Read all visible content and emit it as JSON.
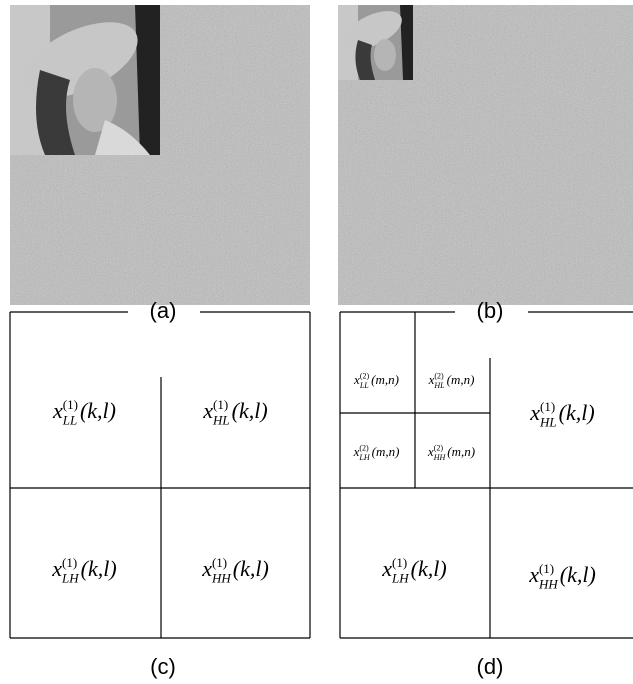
{
  "panels": [
    {
      "caption": "(a)"
    },
    {
      "caption": "(b)"
    },
    {
      "caption": "(c)",
      "cells": [
        {
          "var": "x",
          "sup": "(1)",
          "sub": "LL",
          "arg": "(k,l)"
        },
        {
          "var": "x",
          "sup": "(1)",
          "sub": "HL",
          "arg": "(k,l)"
        },
        {
          "var": "x",
          "sup": "(1)",
          "sub": "LH",
          "arg": "(k,l)"
        },
        {
          "var": "x",
          "sup": "(1)",
          "sub": "HH",
          "arg": "(k,l)"
        }
      ]
    },
    {
      "caption": "(d)",
      "cells": [
        {
          "var": "x",
          "sup": "(2)",
          "sub": "LL",
          "arg": "(m,n)"
        },
        {
          "var": "x",
          "sup": "(2)",
          "sub": "HL",
          "arg": "(m,n)"
        },
        {
          "var": "x",
          "sup": "(2)",
          "sub": "LH",
          "arg": "(m,n)"
        },
        {
          "var": "x",
          "sup": "(2)",
          "sub": "HH",
          "arg": "(m,n)"
        },
        {
          "var": "x",
          "sup": "(1)",
          "sub": "HL",
          "arg": "(k,l)"
        },
        {
          "var": "x",
          "sup": "(1)",
          "sub": "LH",
          "arg": "(k,l)"
        },
        {
          "var": "x",
          "sup": "(1)",
          "sub": "HH",
          "arg": "(k,l)"
        }
      ]
    }
  ]
}
